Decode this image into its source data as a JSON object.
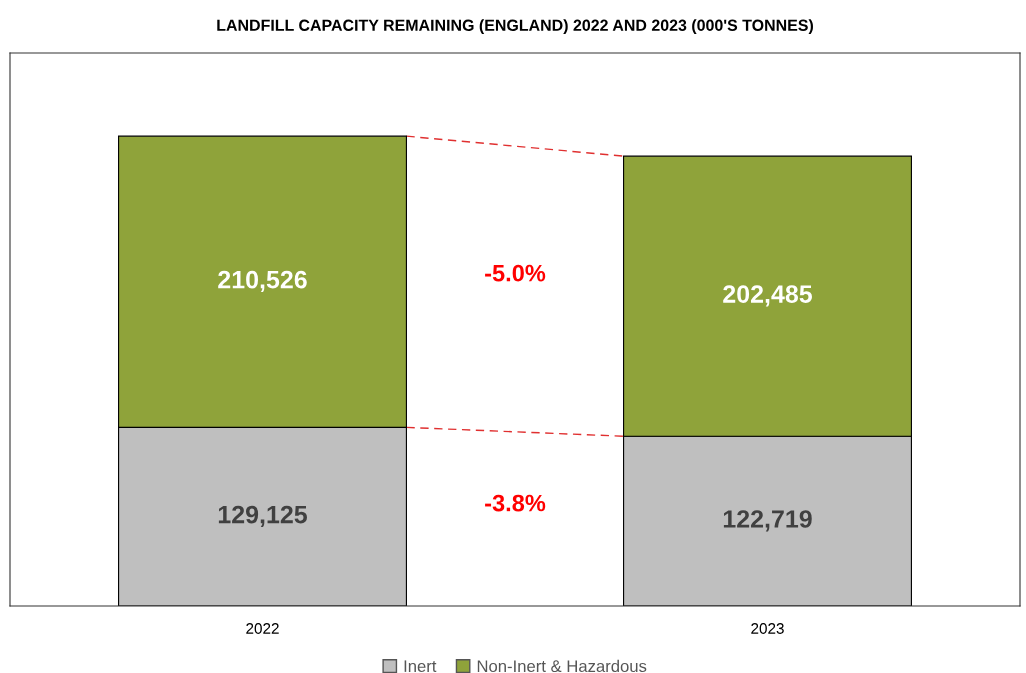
{
  "chart_data": {
    "type": "bar",
    "title": "LANDFILL CAPACITY REMAINING (ENGLAND) 2022 AND 2023 (000'S TONNES)",
    "categories": [
      "2022",
      "2023"
    ],
    "stacked": true,
    "legend": "bottom",
    "grid": false,
    "tick_labels": "x",
    "series": [
      {
        "name": "Inert",
        "color": "#bfbfbf",
        "values": [
          129125,
          122719
        ],
        "value_labels": [
          "129,125",
          "122,719"
        ]
      },
      {
        "name": "Non-Inert & Hazardous",
        "color": "#8fa33a",
        "values": [
          210526,
          202485
        ],
        "value_labels": [
          "210,526",
          "202,485"
        ]
      }
    ],
    "annotations": [
      "-3.8%",
      "-5.0%"
    ]
  }
}
